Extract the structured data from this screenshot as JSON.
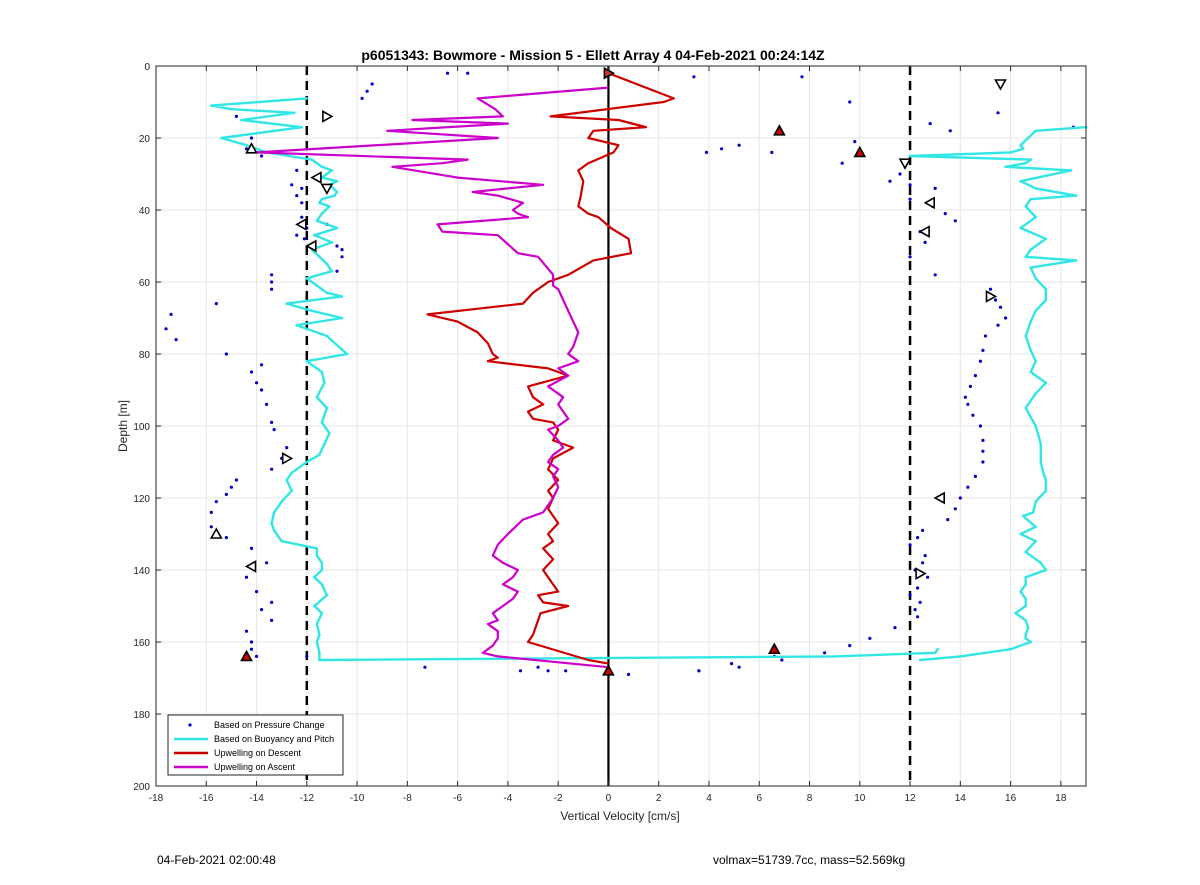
{
  "footer": {
    "timestamp": "04-Feb-2021 02:00:48",
    "stats": "volmax=51739.7cc, mass=52.569kg"
  },
  "chart_data": {
    "type": "line",
    "title": "p6051343: Bowmore - Mission 5 - Ellett Array 4 04-Feb-2021 00:24:14Z",
    "xlabel": "Vertical Velocity [cm/s]",
    "ylabel": "Depth [m]",
    "xlim": [
      -18,
      19
    ],
    "ylim": [
      0,
      200
    ],
    "y_reversed": true,
    "grid": true,
    "legend_position": "bottom-left",
    "xticks": [
      -18,
      -16,
      -14,
      -12,
      -10,
      -8,
      -6,
      -4,
      -2,
      0,
      2,
      4,
      6,
      8,
      10,
      12,
      14,
      16,
      18
    ],
    "yticks": [
      0,
      20,
      40,
      60,
      80,
      100,
      120,
      140,
      160,
      180,
      200
    ],
    "reference_lines": {
      "solid_x": 0,
      "dashed_x": [
        -12,
        12
      ],
      "colors": {
        "solid": "#000000",
        "dashed": "#000000"
      }
    },
    "series": [
      {
        "name": "Based on Pressure Change",
        "style": "dots",
        "color": "#0000cc",
        "x": [
          -9.4,
          -6.4,
          -5.6,
          -9.6,
          -9.8,
          -14.8,
          -14.2,
          -14.4,
          -13.8,
          -14.2,
          -12.4,
          -12.6,
          -12.2,
          -12.4,
          -12.2,
          -11.2,
          -10.6,
          -12.2,
          -12.0,
          -12.4,
          -12.1,
          -10.8,
          -10.6,
          -10.8,
          -13.4,
          -13.4,
          -13.4,
          -15.6,
          -17.4,
          -17.6,
          -17.2,
          -15.2,
          -13.8,
          -14.2,
          -14.0,
          -13.8,
          -13.6,
          -13.4,
          -13.3,
          -12.8,
          -13.0,
          -13.4,
          -14.8,
          -15.0,
          -15.2,
          -15.6,
          -15.8,
          -15.8,
          -15.2,
          -14.2,
          -13.6,
          -14.4,
          -14.0,
          -13.4,
          -13.8,
          -13.4,
          -14.4,
          -14.2,
          -14.2,
          -14.0,
          -14.4,
          -12.0,
          -7.3,
          -3.5,
          -2.8,
          -2.4,
          -1.7,
          0.8,
          3.6,
          5.2,
          6.6,
          3.4,
          7.7,
          9.6,
          3.9,
          4.5,
          5.2,
          6.5,
          9.3,
          9.8,
          12.8,
          13.6,
          18.5,
          15.5,
          11.6,
          11.2,
          12.0,
          12.0,
          12.9,
          13.0,
          13.4,
          13.8,
          12.4,
          12.6,
          12.0,
          13.0,
          15.2,
          15.4,
          15.6,
          15.8,
          15.5,
          15.0,
          14.9,
          14.8,
          14.6,
          14.4,
          14.2,
          14.3,
          14.5,
          14.8,
          14.9,
          14.9,
          14.9,
          14.6,
          14.3,
          14.0,
          13.8,
          13.5,
          12.5,
          12.3,
          12.0,
          12.6,
          12.5,
          12.2,
          12.7,
          12.3,
          12.0,
          12.4,
          12.2,
          12.3,
          11.4,
          10.4,
          9.6,
          8.6,
          6.9,
          4.9,
          3.6
        ],
        "y": [
          5,
          2,
          2,
          7,
          9,
          14,
          20,
          23,
          25,
          22,
          29,
          33,
          34,
          36,
          38,
          44,
          51,
          42,
          45,
          47,
          48,
          50,
          53,
          57,
          58,
          60,
          62,
          66,
          69,
          73,
          76,
          80,
          83,
          85,
          88,
          90,
          94,
          99,
          101,
          106,
          109,
          112,
          115,
          117,
          119,
          121,
          124,
          128,
          131,
          134,
          138,
          142,
          146,
          149,
          151,
          154,
          157,
          160,
          162,
          164,
          164,
          164,
          167,
          168,
          167,
          168,
          168,
          169,
          168,
          167,
          164,
          3,
          3,
          10,
          24,
          23,
          22,
          24,
          27,
          21,
          16,
          18,
          17,
          13,
          30,
          32,
          33,
          37,
          39,
          34,
          41,
          43,
          46,
          49,
          53,
          58,
          62,
          65,
          67,
          70,
          72,
          75,
          79,
          82,
          86,
          89,
          92,
          94,
          97,
          100,
          104,
          107,
          110,
          114,
          117,
          120,
          123,
          126,
          129,
          131,
          133,
          136,
          138,
          140,
          142,
          145,
          147,
          149,
          151,
          153,
          156,
          159,
          161,
          163,
          165,
          166,
          168
        ]
      },
      {
        "name": "Based on Buoyancy and Pitch",
        "style": "line",
        "color": "#33e6e6",
        "segments": [
          {
            "x": [
              -12.0,
              -15.8,
              -15.0,
              -12.5,
              -14.6,
              -12.2,
              -15.4,
              -14.4,
              -13.6,
              -12.7,
              -11.8,
              -11.6,
              -11.4,
              -11.0,
              -11.2,
              -11.4,
              -10.8,
              -11.1,
              -10.8,
              -10.9,
              -11.4,
              -11.5,
              -11.1,
              -11.4,
              -11.6,
              -10.8,
              -11.7,
              -11.0,
              -11.8,
              -11.5,
              -11.2,
              -11.0,
              -12.0,
              -11.6,
              -11.4,
              -11.2,
              -10.6,
              -12.8,
              -11.8,
              -10.6,
              -12.4,
              -11.2,
              -10.4,
              -12.0,
              -11.4,
              -11.3,
              -11.6,
              -11.2,
              -11.4,
              -11.1,
              -11.3,
              -11.5,
              -12.0,
              -12.6,
              -12.8,
              -12.6,
              -13.0,
              -13.3,
              -13.4,
              -13.3,
              -13.0,
              -11.6,
              -11.6,
              -11.4,
              -11.4,
              -11.7,
              -11.4,
              -11.2,
              -11.7,
              -11.4,
              -11.6,
              -11.5,
              -11.6,
              -11.5,
              -11.5,
              9.0,
              13.0,
              13.1
            ],
            "y": [
              9,
              11,
              12,
              13,
              15,
              17,
              20,
              22,
              24,
              25,
              26,
              27,
              28,
              29,
              30,
              31,
              32,
              33,
              35,
              36,
              37,
              38,
              39,
              41,
              43,
              45,
              47,
              49,
              51,
              53,
              55,
              57,
              59,
              61,
              62,
              63,
              64,
              66,
              68,
              70,
              72,
              75,
              80,
              82,
              85,
              88,
              92,
              95,
              99,
              102,
              105,
              108,
              110,
              113,
              115,
              118,
              121,
              124,
              127,
              129,
              132,
              134,
              136,
              138,
              140,
              142,
              144,
              147,
              150,
              152,
              155,
              158,
              160,
              163,
              165,
              164,
              163,
              162
            ]
          },
          {
            "x": [
              19.0,
              17.0,
              16.4,
              16.5,
              16.0,
              12.0,
              16.8,
              16.6,
              15.8,
              18.4,
              16.4,
              17.0,
              18.6,
              16.8,
              16.6,
              17.0,
              16.4,
              17.4,
              16.8,
              16.6,
              18.6,
              16.8,
              17.0,
              17.4,
              17.4,
              17.0,
              16.8,
              16.6,
              16.8,
              17.0,
              16.8,
              17.4,
              17.0,
              16.6,
              17.0,
              17.2,
              17.2,
              17.3,
              17.4,
              17.4,
              17.0,
              16.9,
              16.5,
              17.0,
              16.4,
              17.0,
              16.6,
              17.2,
              17.4,
              16.6,
              16.6,
              16.4,
              16.6,
              16.6,
              16.2,
              16.6,
              16.7,
              16.6,
              16.6,
              16.8,
              16.0,
              14.0,
              12.4
            ],
            "y": [
              17,
              18,
              22,
              23,
              24,
              25,
              26,
              27,
              28,
              29,
              32,
              34,
              36,
              37,
              39,
              42,
              45,
              48,
              51,
              53,
              54,
              56,
              59,
              62,
              65,
              68,
              71,
              75,
              79,
              82,
              85,
              88,
              91,
              95,
              100,
              105,
              110,
              113,
              115,
              118,
              121,
              124,
              125,
              128,
              130,
              132,
              135,
              138,
              140,
              142,
              144,
              146,
              148,
              150,
              152,
              154,
              156,
              158,
              159,
              160,
              162,
              164,
              165
            ]
          }
        ]
      },
      {
        "name": "Upwelling on Descent",
        "style": "line",
        "color": "#cc0000",
        "x": [
          0.0,
          2.6,
          2.2,
          -2.3,
          0.4,
          1.5,
          -0.6,
          -0.8,
          0.4,
          0.2,
          -0.8,
          -1.2,
          -1.0,
          -1.1,
          -1.2,
          -0.8,
          -0.4,
          0.1,
          0.8,
          0.9,
          -0.6,
          -1.6,
          -2.4,
          -3.0,
          -3.4,
          -7.2,
          -6.0,
          -5.2,
          -4.8,
          -4.6,
          -4.4,
          -4.8,
          -2.4,
          -1.6,
          -3.2,
          -3.0,
          -2.6,
          -3.2,
          -3.0,
          -2.2,
          -2.0,
          -2.2,
          -1.4,
          -2.2,
          -2.4,
          -2.0,
          -2.4,
          -2.2,
          -2.4,
          -2.2,
          -2.0,
          -2.4,
          -2.2,
          -2.6,
          -2.2,
          -2.6,
          -2.4,
          -2.0,
          -2.8,
          -2.6,
          -1.6,
          -2.7,
          -2.8,
          -2.9,
          -3.0,
          -3.2,
          -0.8,
          0.0
        ],
        "y": [
          2,
          9,
          10,
          14,
          15,
          17,
          18,
          20,
          22,
          24,
          27,
          29,
          32,
          36,
          39,
          41,
          42,
          45,
          48,
          52,
          54,
          58,
          60,
          63,
          66,
          69,
          71,
          74,
          77,
          80,
          81,
          82,
          84,
          86,
          89,
          92,
          94,
          96,
          98,
          99,
          101,
          104,
          106,
          109,
          112,
          115,
          118,
          120,
          123,
          125,
          127,
          130,
          132,
          134,
          137,
          140,
          142,
          146,
          147,
          149,
          150,
          152,
          154,
          156,
          158,
          160,
          165,
          166
        ]
      },
      {
        "name": "Upwelling on Ascent",
        "style": "line",
        "color": "#cc00cc",
        "x": [
          0.0,
          -5.2,
          -4.5,
          -4.2,
          -7.8,
          -4.0,
          -8.8,
          -4.4,
          -14.0,
          -5.6,
          -6.6,
          -8.6,
          -6.0,
          -2.6,
          -5.4,
          -4.4,
          -3.4,
          -3.8,
          -3.6,
          -3.2,
          -6.8,
          -6.6,
          -4.4,
          -3.6,
          -2.8,
          -2.2,
          -2.2,
          -2.0,
          -1.8,
          -1.6,
          -1.4,
          -1.2,
          -1.4,
          -1.6,
          -1.2,
          -2.0,
          -1.6,
          -2.4,
          -1.8,
          -2.0,
          -1.8,
          -1.6,
          -2.0,
          -2.4,
          -2.0,
          -1.8,
          -2.2,
          -2.4,
          -2.0,
          -2.2,
          -2.0,
          -2.2,
          -2.6,
          -3.4,
          -4.0,
          -4.4,
          -4.6,
          -4.2,
          -3.6,
          -3.8,
          -4.2,
          -3.6,
          -3.8,
          -4.2,
          -4.6,
          -4.4,
          -4.8,
          -4.4,
          -4.4,
          -4.6,
          -5.0,
          -4.4,
          0.0
        ],
        "y": [
          6,
          9,
          12,
          14,
          15,
          16,
          18,
          20,
          24,
          26,
          27,
          28,
          31,
          33,
          35,
          36,
          38,
          40,
          41,
          42,
          44,
          46,
          47,
          52,
          53,
          58,
          61,
          62,
          65,
          68,
          71,
          74,
          78,
          80,
          82,
          84,
          86,
          89,
          92,
          94,
          96,
          98,
          100,
          101,
          104,
          106,
          108,
          110,
          112,
          114,
          117,
          120,
          124,
          126,
          130,
          133,
          136,
          138,
          140,
          142,
          144,
          146,
          148,
          150,
          152,
          154,
          155,
          157,
          159,
          161,
          163,
          164,
          167
        ]
      }
    ],
    "markers": [
      {
        "x": 0.0,
        "y": 2,
        "shape": "triangle-right",
        "fill": "#cc3333"
      },
      {
        "x": -11.2,
        "y": 14,
        "shape": "triangle-right",
        "fill": "#ffffff"
      },
      {
        "x": 6.8,
        "y": 18,
        "shape": "triangle-up",
        "fill": "#cc0000"
      },
      {
        "x": -14.2,
        "y": 23,
        "shape": "triangle-up",
        "fill": "#ffffff"
      },
      {
        "x": 10.0,
        "y": 24,
        "shape": "triangle-up",
        "fill": "#cc0000"
      },
      {
        "x": 15.6,
        "y": 5,
        "shape": "triangle-down",
        "fill": "#ffffff"
      },
      {
        "x": 11.8,
        "y": 27,
        "shape": "triangle-down",
        "fill": "#ffffff"
      },
      {
        "x": -11.6,
        "y": 31,
        "shape": "triangle-left",
        "fill": "#ffffff"
      },
      {
        "x": -11.2,
        "y": 34,
        "shape": "triangle-down",
        "fill": "#ffffff"
      },
      {
        "x": 12.8,
        "y": 38,
        "shape": "triangle-left",
        "fill": "#ffffff"
      },
      {
        "x": -12.2,
        "y": 44,
        "shape": "triangle-left",
        "fill": "#ffffff"
      },
      {
        "x": 12.6,
        "y": 46,
        "shape": "triangle-left",
        "fill": "#ffffff"
      },
      {
        "x": -11.8,
        "y": 50,
        "shape": "triangle-left",
        "fill": "#ffffff"
      },
      {
        "x": 15.2,
        "y": 64,
        "shape": "triangle-right",
        "fill": "#ffffff"
      },
      {
        "x": -12.8,
        "y": 109,
        "shape": "triangle-right",
        "fill": "#ffffff"
      },
      {
        "x": 13.2,
        "y": 120,
        "shape": "triangle-left",
        "fill": "#ffffff"
      },
      {
        "x": -15.6,
        "y": 130,
        "shape": "triangle-up",
        "fill": "#ffffff"
      },
      {
        "x": -14.2,
        "y": 139,
        "shape": "triangle-left",
        "fill": "#ffffff"
      },
      {
        "x": 12.4,
        "y": 141,
        "shape": "triangle-right",
        "fill": "#ffffff"
      },
      {
        "x": 6.6,
        "y": 162,
        "shape": "triangle-up",
        "fill": "#cc0000"
      },
      {
        "x": -14.4,
        "y": 164,
        "shape": "triangle-up",
        "fill": "#cc0000"
      },
      {
        "x": 0.0,
        "y": 168,
        "shape": "triangle-up",
        "fill": "#cc0000"
      }
    ]
  }
}
